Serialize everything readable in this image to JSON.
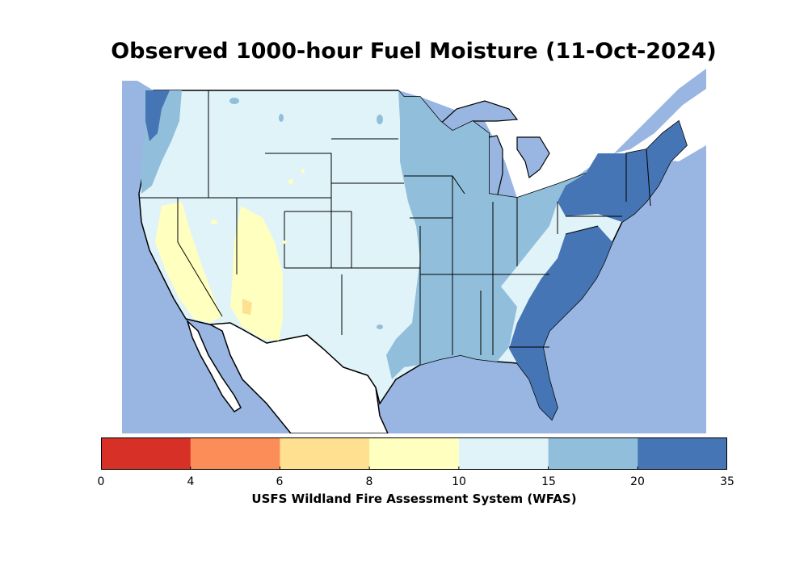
{
  "map": {
    "title": "Observed 1000-hour Fuel Moisture (11-Oct-2024)",
    "ocean_color": "#98b6e1",
    "land_outside_color": "#ffffff",
    "layer_colors": {
      "wet_20_35": "#4575b4",
      "moist_15_20": "#91bfdb",
      "moderate_10_15": "#e0f3f8",
      "dry_8_10": "#ffffbf",
      "very_dry_6_8": "#fee090",
      "extreme_4_6": "#fc8d59"
    }
  },
  "colorbar": {
    "label": "USFS Wildland Fire Assessment System (WFAS)",
    "ticks": [
      "0",
      "4",
      "6",
      "8",
      "10",
      "15",
      "20",
      "35"
    ],
    "bins": [
      {
        "range": "0-4",
        "color": "#d73027"
      },
      {
        "range": "4-6",
        "color": "#fc8d59"
      },
      {
        "range": "6-8",
        "color": "#fee090"
      },
      {
        "range": "8-10",
        "color": "#ffffbf"
      },
      {
        "range": "10-15",
        "color": "#e0f3f8"
      },
      {
        "range": "15-20",
        "color": "#91bfdb"
      },
      {
        "range": "20-35",
        "color": "#4575b4"
      }
    ]
  }
}
